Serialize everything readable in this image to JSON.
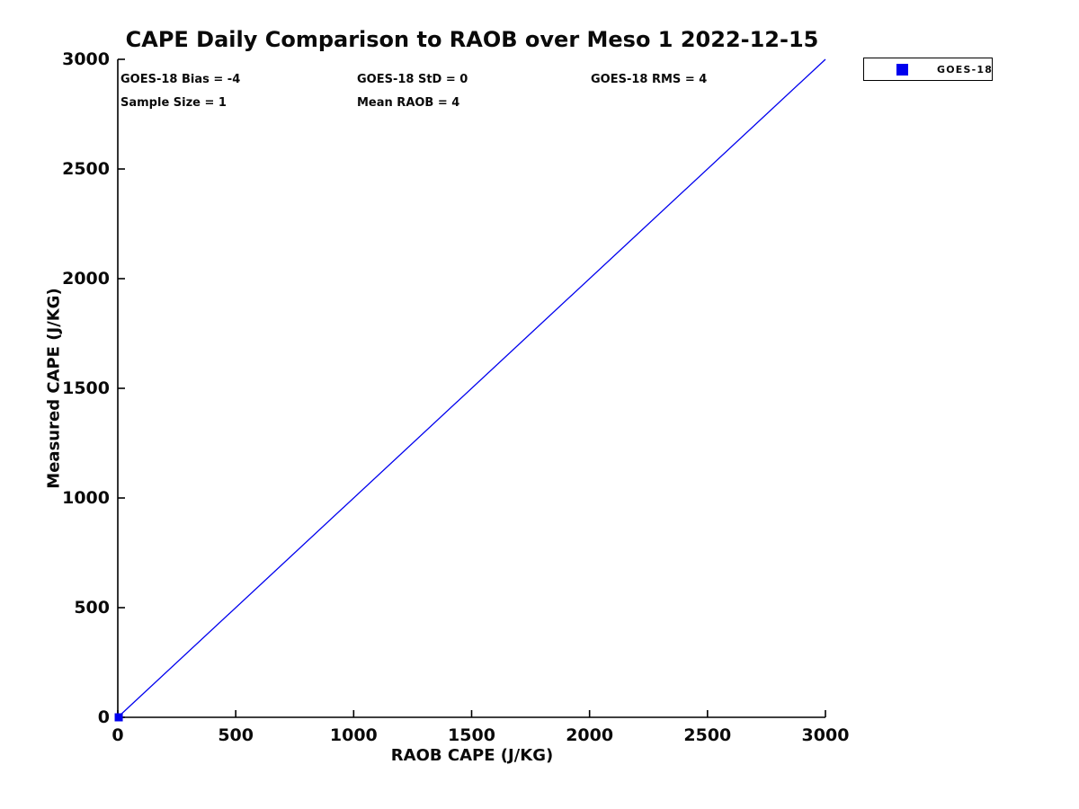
{
  "chart_data": {
    "type": "scatter",
    "title": "CAPE Daily Comparison to RAOB over Meso 1 2022-12-15",
    "xlabel": "RAOB CAPE (J/KG)",
    "ylabel": "Measured CAPE (J/KG)",
    "xlim": [
      0,
      3000
    ],
    "ylim": [
      0,
      3000
    ],
    "x_ticks": [
      0,
      500,
      1000,
      1500,
      2000,
      2500,
      3000
    ],
    "y_ticks": [
      0,
      500,
      1000,
      1500,
      2000,
      2500,
      3000
    ],
    "grid": false,
    "box": false,
    "tick_direction": "in",
    "axis_color": "#000000",
    "annotations": {
      "bias": "GOES-18 Bias = -4",
      "std": "GOES-18 StD = 0",
      "rms": "GOES-18 RMS = 4",
      "sample_size": "Sample Size = 1",
      "mean_raob": "Mean RAOB = 4"
    },
    "legend": {
      "position": "outside-top-right",
      "entries": [
        {
          "label": "GOES-18",
          "marker": "square",
          "color": "#0000ee"
        }
      ]
    },
    "series": [
      {
        "name": "identity-line",
        "type": "line",
        "color": "#0000ee",
        "line_width": 1.3,
        "x": [
          0,
          3000
        ],
        "y": [
          0,
          3000
        ]
      },
      {
        "name": "GOES-18",
        "type": "scatter",
        "marker": "square",
        "marker_size": 9,
        "color": "#0000ee",
        "x": [
          4
        ],
        "y": [
          0
        ]
      }
    ]
  }
}
